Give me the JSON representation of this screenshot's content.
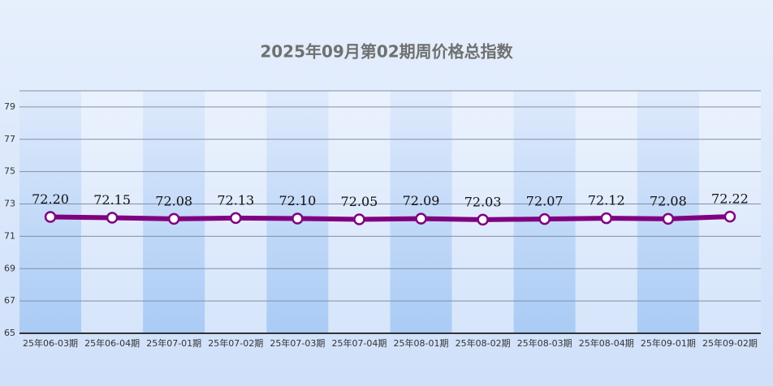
{
  "chart_data": {
    "type": "line",
    "title": "2025年09月第02期周价格总指数",
    "categories": [
      "25年06-03期",
      "25年06-04期",
      "25年07-01期",
      "25年07-02期",
      "25年07-03期",
      "25年07-04期",
      "25年08-01期",
      "25年08-02期",
      "25年08-03期",
      "25年08-04期",
      "25年09-01期",
      "25年09-02期"
    ],
    "values": [
      72.2,
      72.15,
      72.08,
      72.13,
      72.1,
      72.05,
      72.09,
      72.03,
      72.07,
      72.12,
      72.08,
      72.22
    ],
    "value_labels": [
      "72.20",
      "72.15",
      "72.08",
      "72.13",
      "72.10",
      "72.05",
      "72.09",
      "72.03",
      "72.07",
      "72.12",
      "72.08",
      "72.22"
    ],
    "color": "#800080",
    "ylim": [
      65,
      80
    ],
    "yticks": [
      65,
      67,
      69,
      71,
      73,
      75,
      77,
      79
    ],
    "grid": true
  }
}
